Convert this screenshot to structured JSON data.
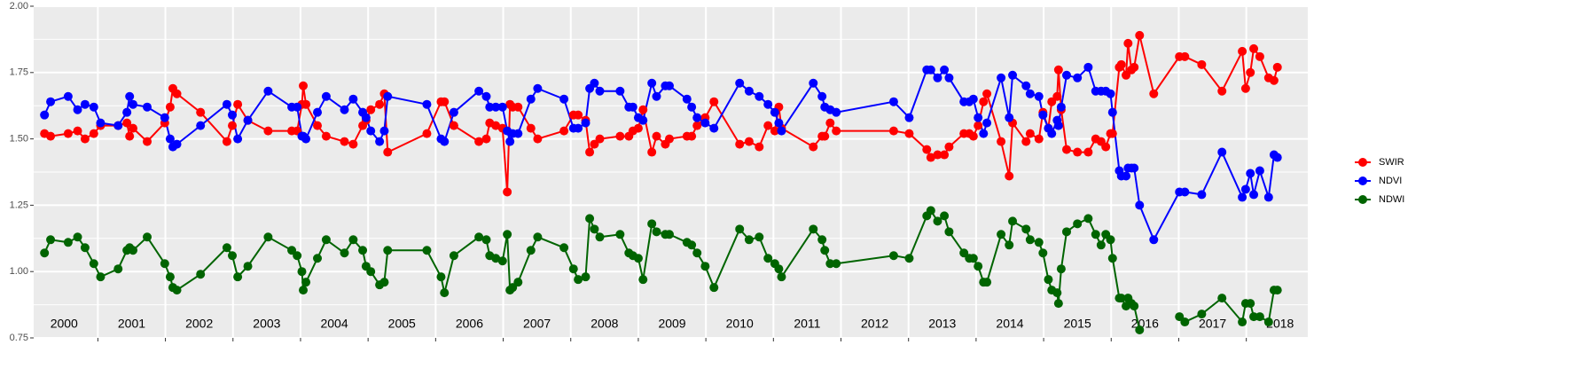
{
  "chart_data": {
    "type": "line",
    "x": [
      2000.21,
      2000.3,
      2000.56,
      2000.7,
      2000.81,
      2000.94,
      2001.04,
      2001.3,
      2001.43,
      2001.47,
      2001.52,
      2001.73,
      2001.99,
      2002.07,
      2002.11,
      2002.17,
      2002.52,
      2002.91,
      2002.99,
      2003.07,
      2003.22,
      2003.52,
      2003.87,
      2003.95,
      2004.02,
      2004.04,
      2004.08,
      2004.25,
      2004.38,
      2004.65,
      2004.78,
      2004.92,
      2004.97,
      2005.04,
      2005.17,
      2005.24,
      2005.29,
      2005.87,
      2006.08,
      2006.13,
      2006.27,
      2006.64,
      2006.75,
      2006.8,
      2006.89,
      2006.99,
      2007.06,
      2007.1,
      2007.14,
      2007.22,
      2007.41,
      2007.51,
      2007.9,
      2008.04,
      2008.11,
      2008.22,
      2008.28,
      2008.35,
      2008.43,
      2008.73,
      2008.86,
      2008.92,
      2009.0,
      2009.07,
      2009.2,
      2009.27,
      2009.4,
      2009.46,
      2009.72,
      2009.79,
      2009.87,
      2009.99,
      2010.12,
      2010.5,
      2010.64,
      2010.79,
      2010.92,
      2011.02,
      2011.08,
      2011.12,
      2011.59,
      2011.72,
      2011.76,
      2011.84,
      2011.93,
      2012.78,
      2013.01,
      2013.27,
      2013.33,
      2013.43,
      2013.53,
      2013.6,
      2013.82,
      2013.9,
      2013.96,
      2014.03,
      2014.11,
      2014.16,
      2014.37,
      2014.49,
      2014.54,
      2014.74,
      2014.8,
      2014.93,
      2014.99,
      2015.07,
      2015.12,
      2015.2,
      2015.22,
      2015.26,
      2015.34,
      2015.5,
      2015.66,
      2015.77,
      2015.85,
      2015.92,
      2015.99,
      2016.02,
      2016.12,
      2016.15,
      2016.22,
      2016.25,
      2016.3,
      2016.34,
      2016.42,
      2016.63,
      2017.01,
      2017.09,
      2017.34,
      2017.64,
      2017.94,
      2017.99,
      2018.06,
      2018.11,
      2018.2,
      2018.33,
      2018.41,
      2018.46
    ],
    "series": [
      {
        "name": "SWIR",
        "color": "#ff0000",
        "values": [
          1.52,
          1.51,
          1.52,
          1.53,
          1.5,
          1.52,
          1.55,
          1.55,
          1.56,
          1.51,
          1.54,
          1.49,
          1.56,
          1.62,
          1.69,
          1.67,
          1.6,
          1.49,
          1.55,
          1.63,
          1.57,
          1.53,
          1.53,
          1.53,
          1.63,
          1.7,
          1.63,
          1.55,
          1.51,
          1.49,
          1.48,
          1.55,
          1.57,
          1.61,
          1.63,
          1.67,
          1.45,
          1.52,
          1.64,
          1.64,
          1.55,
          1.49,
          1.5,
          1.56,
          1.55,
          1.54,
          1.3,
          1.63,
          1.62,
          1.62,
          1.54,
          1.5,
          1.53,
          1.59,
          1.59,
          1.57,
          1.45,
          1.48,
          1.5,
          1.51,
          1.51,
          1.53,
          1.54,
          1.61,
          1.45,
          1.51,
          1.48,
          1.5,
          1.51,
          1.51,
          1.55,
          1.58,
          1.64,
          1.48,
          1.49,
          1.47,
          1.55,
          1.53,
          1.62,
          1.54,
          1.47,
          1.51,
          1.51,
          1.56,
          1.53,
          1.53,
          1.52,
          1.46,
          1.43,
          1.44,
          1.44,
          1.47,
          1.52,
          1.52,
          1.51,
          1.55,
          1.64,
          1.67,
          1.49,
          1.36,
          1.56,
          1.49,
          1.52,
          1.5,
          1.6,
          1.54,
          1.64,
          1.66,
          1.76,
          1.61,
          1.46,
          1.45,
          1.45,
          1.5,
          1.49,
          1.47,
          1.52,
          1.52,
          1.77,
          1.78,
          1.74,
          1.86,
          1.76,
          1.77,
          1.89,
          1.67,
          1.81,
          1.81,
          1.78,
          1.68,
          1.83,
          1.69,
          1.75,
          1.84,
          1.81,
          1.73,
          1.72,
          1.77
        ]
      },
      {
        "name": "NDVI",
        "color": "#0000ff",
        "values": [
          1.59,
          1.64,
          1.66,
          1.61,
          1.63,
          1.62,
          1.56,
          1.55,
          1.6,
          1.66,
          1.63,
          1.62,
          1.58,
          1.5,
          1.47,
          1.48,
          1.55,
          1.63,
          1.59,
          1.5,
          1.57,
          1.68,
          1.62,
          1.62,
          1.51,
          1.51,
          1.5,
          1.6,
          1.66,
          1.61,
          1.65,
          1.6,
          1.58,
          1.53,
          1.49,
          1.53,
          1.66,
          1.63,
          1.5,
          1.49,
          1.6,
          1.68,
          1.66,
          1.62,
          1.62,
          1.62,
          1.53,
          1.49,
          1.52,
          1.52,
          1.65,
          1.69,
          1.65,
          1.54,
          1.54,
          1.56,
          1.69,
          1.71,
          1.68,
          1.68,
          1.62,
          1.62,
          1.58,
          1.57,
          1.71,
          1.66,
          1.7,
          1.7,
          1.65,
          1.62,
          1.58,
          1.56,
          1.54,
          1.71,
          1.68,
          1.66,
          1.63,
          1.6,
          1.56,
          1.53,
          1.71,
          1.66,
          1.62,
          1.61,
          1.6,
          1.64,
          1.58,
          1.76,
          1.76,
          1.73,
          1.76,
          1.73,
          1.64,
          1.64,
          1.65,
          1.58,
          1.52,
          1.56,
          1.73,
          1.58,
          1.74,
          1.7,
          1.67,
          1.66,
          1.59,
          1.54,
          1.52,
          1.57,
          1.55,
          1.62,
          1.74,
          1.73,
          1.77,
          1.68,
          1.68,
          1.68,
          1.67,
          1.6,
          1.38,
          1.36,
          1.36,
          1.39,
          1.39,
          1.39,
          1.25,
          1.12,
          1.3,
          1.3,
          1.29,
          1.45,
          1.28,
          1.31,
          1.37,
          1.29,
          1.38,
          1.28,
          1.44,
          1.43
        ]
      },
      {
        "name": "NDWI",
        "color": "#006400",
        "values": [
          1.07,
          1.12,
          1.11,
          1.13,
          1.09,
          1.03,
          0.98,
          1.01,
          1.08,
          1.09,
          1.08,
          1.13,
          1.03,
          0.98,
          0.94,
          0.93,
          0.99,
          1.09,
          1.06,
          0.98,
          1.02,
          1.13,
          1.08,
          1.06,
          1.0,
          0.93,
          0.96,
          1.05,
          1.12,
          1.07,
          1.12,
          1.08,
          1.02,
          1.0,
          0.95,
          0.96,
          1.08,
          1.08,
          0.98,
          0.92,
          1.06,
          1.13,
          1.12,
          1.06,
          1.05,
          1.04,
          1.14,
          0.93,
          0.94,
          0.96,
          1.08,
          1.13,
          1.09,
          1.01,
          0.97,
          0.98,
          1.2,
          1.16,
          1.13,
          1.14,
          1.07,
          1.06,
          1.05,
          0.97,
          1.18,
          1.15,
          1.14,
          1.14,
          1.11,
          1.1,
          1.07,
          1.02,
          0.94,
          1.16,
          1.12,
          1.13,
          1.05,
          1.03,
          1.01,
          0.98,
          1.16,
          1.12,
          1.08,
          1.03,
          1.03,
          1.06,
          1.05,
          1.21,
          1.23,
          1.19,
          1.21,
          1.15,
          1.07,
          1.05,
          1.05,
          1.02,
          0.96,
          0.96,
          1.14,
          1.1,
          1.19,
          1.16,
          1.12,
          1.11,
          1.07,
          0.97,
          0.93,
          0.92,
          0.88,
          1.01,
          1.15,
          1.18,
          1.2,
          1.14,
          1.1,
          1.14,
          1.12,
          1.05,
          0.9,
          0.9,
          0.87,
          0.9,
          0.88,
          0.87,
          0.78,
          null,
          0.83,
          0.81,
          0.84,
          0.9,
          0.81,
          0.88,
          0.88,
          0.83,
          0.83,
          0.81,
          0.93,
          0.93
        ]
      }
    ],
    "xlim": [
      2000.05,
      2018.91
    ],
    "xticks": [
      2001,
      2002,
      2003,
      2004,
      2005,
      2006,
      2007,
      2008,
      2009,
      2010,
      2011,
      2012,
      2013,
      2014,
      2015,
      2016,
      2017,
      2018
    ],
    "ylim": [
      0.75,
      2.0
    ],
    "yticks": [
      {
        "value": 0.75,
        "label": "0.75"
      },
      {
        "value": 1.0,
        "label": "1.00"
      },
      1.25,
      {
        "value": 1.5,
        "label": "1.50"
      },
      1.75,
      {
        "value": 2.0,
        "label": "2.00"
      }
    ],
    "y_minor_ticks": [
      0.875,
      1.125,
      1.375,
      1.625,
      1.875
    ],
    "grid": true,
    "legend": "right",
    "annotations": [
      {
        "x": 2000.5,
        "text": "2000"
      },
      {
        "x": 2001.5,
        "text": "2001"
      },
      {
        "x": 2002.5,
        "text": "2002"
      },
      {
        "x": 2003.5,
        "text": "2003"
      },
      {
        "x": 2004.5,
        "text": "2004"
      },
      {
        "x": 2005.5,
        "text": "2005"
      },
      {
        "x": 2006.5,
        "text": "2006"
      },
      {
        "x": 2007.5,
        "text": "2007"
      },
      {
        "x": 2008.5,
        "text": "2008"
      },
      {
        "x": 2009.5,
        "text": "2009"
      },
      {
        "x": 2010.5,
        "text": "2010"
      },
      {
        "x": 2011.5,
        "text": "2011"
      },
      {
        "x": 2012.5,
        "text": "2012"
      },
      {
        "x": 2013.5,
        "text": "2013"
      },
      {
        "x": 2014.5,
        "text": "2014"
      },
      {
        "x": 2015.5,
        "text": "2015"
      },
      {
        "x": 2016.5,
        "text": "2016"
      },
      {
        "x": 2017.5,
        "text": "2017"
      },
      {
        "x": 2018.5,
        "text": "2018"
      }
    ]
  }
}
